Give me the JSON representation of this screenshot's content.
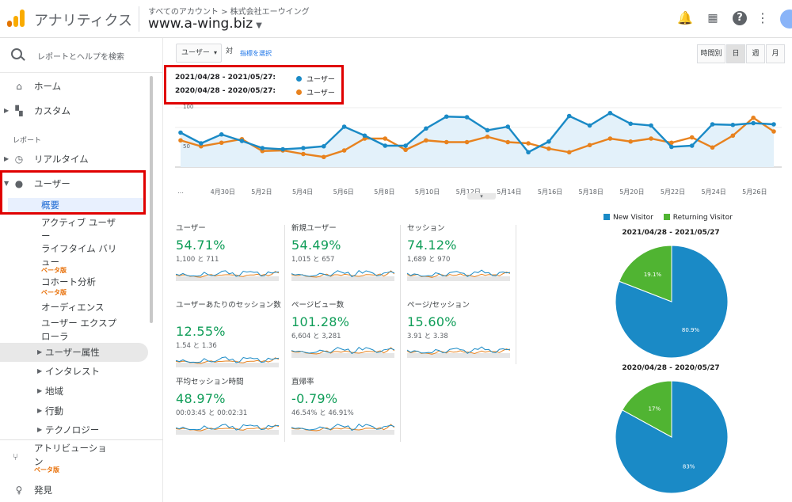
{
  "app": {
    "title": "アナリティクス",
    "breadcrumb": "すべてのアカウント > 株式会社エーウイング",
    "property": "www.a-wing.biz"
  },
  "sidebar": {
    "search_placeholder": "レポートとヘルプを検索",
    "home": "ホーム",
    "custom": "カスタム",
    "section_label": "レポート",
    "realtime": "リアルタイム",
    "user": "ユーザー",
    "overview": "概要",
    "active_users": "アクティブ ユーザー",
    "lifetime_value": "ライフタイム バリュー",
    "cohort": "コホート分析",
    "audiences": "オーディエンス",
    "user_explorer": "ユーザー エクスプローラ",
    "demographics": "ユーザー属性",
    "interests": "インタレスト",
    "geo": "地域",
    "behavior": "行動",
    "technology": "テクノロジー",
    "attribution": "アトリビューション",
    "discover": "発見",
    "beta": "ベータ版"
  },
  "toolbar": {
    "metric_select": "ユーザー",
    "vs": "対",
    "pick_metric": "指標を選択",
    "hourly": "時間別",
    "day": "日",
    "week": "週",
    "month": "月"
  },
  "colors": {
    "current": "#1a8ac6",
    "previous": "#e8821e",
    "new_visitor": "#1a8ac6",
    "returning_visitor": "#50b432",
    "positive": "#0f9d58"
  },
  "legend": {
    "current_range": "2021/04/28 - 2021/05/27:",
    "previous_range": "2020/04/28 - 2020/05/27:",
    "series_label": "ユーザー"
  },
  "chart_data": [
    {
      "type": "line",
      "y_ticks": [
        "100",
        "50"
      ],
      "ylim": [
        0,
        100
      ],
      "x_ticks": [
        "…",
        "4月30日",
        "5月2日",
        "5月4日",
        "5月6日",
        "5月8日",
        "5月10日",
        "5月12日",
        "5月14日",
        "5月16日",
        "5月18日",
        "5月20日",
        "5月22日",
        "5月24日",
        "5月26日"
      ],
      "series": [
        {
          "name": "2021/04/28 - 2021/05/27",
          "values": [
            58,
            40,
            55,
            44,
            32,
            30,
            32,
            35,
            68,
            53,
            36,
            36,
            65,
            85,
            84,
            62,
            68,
            25,
            43,
            86,
            70,
            91,
            73,
            70,
            34,
            36,
            72,
            71,
            74,
            72
          ]
        },
        {
          "name": "2020/04/28 - 2020/05/27",
          "values": [
            45,
            35,
            41,
            47,
            27,
            28,
            22,
            17,
            28,
            48,
            48,
            29,
            45,
            42,
            42,
            51,
            42,
            40,
            31,
            25,
            37,
            48,
            43,
            48,
            41,
            50,
            33,
            53,
            83,
            60
          ]
        }
      ]
    },
    {
      "type": "pie",
      "title": "2021/04/28 - 2021/05/27",
      "categories": [
        "New Visitor",
        "Returning Visitor"
      ],
      "values": [
        80.9,
        19.1
      ],
      "labels": [
        "80.9%",
        "19.1%"
      ]
    },
    {
      "type": "pie",
      "title": "2020/04/28 - 2020/05/27",
      "categories": [
        "New Visitor",
        "Returning Visitor"
      ],
      "values": [
        83,
        17
      ],
      "labels": [
        "83%",
        "17%"
      ]
    }
  ],
  "metrics": [
    {
      "name": "ユーザー",
      "pct": "54.71%",
      "cmp": "1,100 と 711"
    },
    {
      "name": "新規ユーザー",
      "pct": "54.49%",
      "cmp": "1,015 と 657"
    },
    {
      "name": "セッション",
      "pct": "74.12%",
      "cmp": "1,689 と 970"
    },
    {
      "name": "ユーザーあたりのセッション数",
      "pct": "12.55%",
      "cmp": "1.54 と 1.36"
    },
    {
      "name": "ページビュー数",
      "pct": "101.28%",
      "cmp": "6,604 と 3,281"
    },
    {
      "name": "ページ/セッション",
      "pct": "15.60%",
      "cmp": "3.91 と 3.38"
    },
    {
      "name": "平均セッション時間",
      "pct": "48.97%",
      "cmp": "00:03:45 と 00:02:31"
    },
    {
      "name": "直帰率",
      "pct": "-0.79%",
      "cmp": "46.54% と 46.91%"
    }
  ],
  "pie_legend": {
    "new": "New Visitor",
    "returning": "Returning Visitor"
  }
}
